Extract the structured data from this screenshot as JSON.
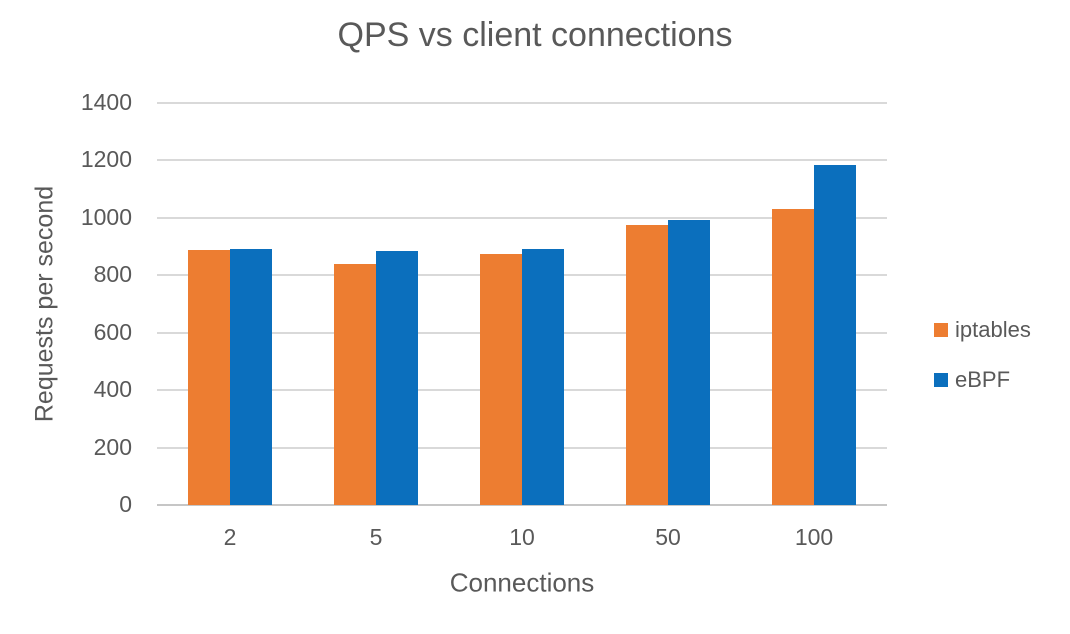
{
  "chart_data": {
    "type": "bar",
    "title": "QPS vs client connections",
    "xlabel": "Connections",
    "ylabel": "Requests per second",
    "categories": [
      "2",
      "5",
      "10",
      "50",
      "100"
    ],
    "series": [
      {
        "name": "iptables",
        "color": "#ED7D31",
        "values": [
          889,
          839,
          873,
          974,
          1031
        ]
      },
      {
        "name": "eBPF",
        "color": "#0B6FBD",
        "values": [
          890,
          886,
          893,
          994,
          1184
        ]
      }
    ],
    "ylim": [
      0,
      1400
    ],
    "ytick_step": 200,
    "grid": true,
    "legend_position": "right"
  },
  "colors": {
    "text": "#595959",
    "gridline": "#D9D9D9",
    "axis_line": "#C6C6C6",
    "background": "#FFFFFF"
  }
}
